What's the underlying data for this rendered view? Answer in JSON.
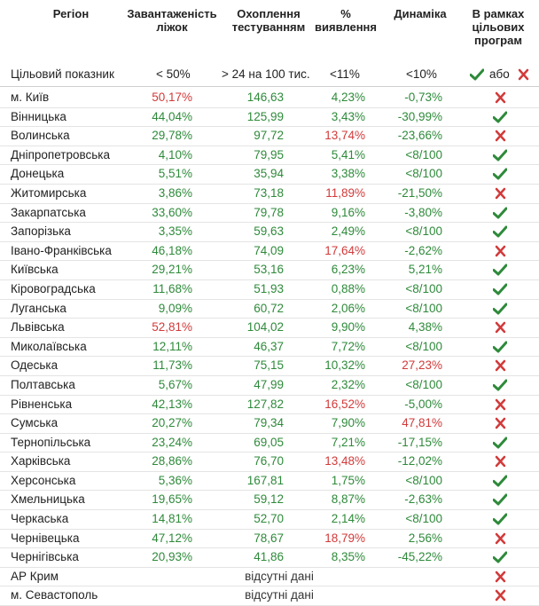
{
  "headers": {
    "region": "Регіон",
    "occupancy": "Завантаженість\nліжок",
    "coverage": "Охоплення\nтестуванням",
    "detection": "%\nвиявлення",
    "dynamics": "Динаміка",
    "programs": "В рамках\nцільових\nпрограм"
  },
  "target": {
    "label": "Цільовий показник",
    "occupancy": "< 50%",
    "coverage": "> 24 на 100 тис.",
    "detection": "<11%",
    "dynamics": "<10%",
    "or_word": "або"
  },
  "missing_text": "відсутні дані",
  "colors": {
    "green": "#2e8a3a",
    "red": "#d23a3a"
  },
  "rows": [
    {
      "name": "м. Київ",
      "occ": "50,17%",
      "occ_c": "red",
      "cov": "146,63",
      "det": "4,23%",
      "det_c": "green",
      "dyn": "-0,73%",
      "dyn_c": "green",
      "ok": false
    },
    {
      "name": "Вінницька",
      "occ": "44,04%",
      "occ_c": "green",
      "cov": "125,99",
      "det": "3,43%",
      "det_c": "green",
      "dyn": "-30,99%",
      "dyn_c": "green",
      "ok": true
    },
    {
      "name": "Волинська",
      "occ": "29,78%",
      "occ_c": "green",
      "cov": "97,72",
      "det": "13,74%",
      "det_c": "red",
      "dyn": "-23,66%",
      "dyn_c": "green",
      "ok": false
    },
    {
      "name": "Дніпропетровська",
      "occ": "4,10%",
      "occ_c": "green",
      "cov": "79,95",
      "det": "5,41%",
      "det_c": "green",
      "dyn": "<8/100",
      "dyn_c": "green",
      "ok": true
    },
    {
      "name": "Донецька",
      "occ": "5,51%",
      "occ_c": "green",
      "cov": "35,94",
      "det": "3,38%",
      "det_c": "green",
      "dyn": "<8/100",
      "dyn_c": "green",
      "ok": true
    },
    {
      "name": "Житомирська",
      "occ": "3,86%",
      "occ_c": "green",
      "cov": "73,18",
      "det": "11,89%",
      "det_c": "red",
      "dyn": "-21,50%",
      "dyn_c": "green",
      "ok": false
    },
    {
      "name": "Закарпатська",
      "occ": "33,60%",
      "occ_c": "green",
      "cov": "79,78",
      "det": "9,16%",
      "det_c": "green",
      "dyn": "-3,80%",
      "dyn_c": "green",
      "ok": true
    },
    {
      "name": "Запорізька",
      "occ": "3,35%",
      "occ_c": "green",
      "cov": "59,63",
      "det": "2,49%",
      "det_c": "green",
      "dyn": "<8/100",
      "dyn_c": "green",
      "ok": true
    },
    {
      "name": "Івано-Франківська",
      "occ": "46,18%",
      "occ_c": "green",
      "cov": "74,09",
      "det": "17,64%",
      "det_c": "red",
      "dyn": "-2,62%",
      "dyn_c": "green",
      "ok": false
    },
    {
      "name": "Київська",
      "occ": "29,21%",
      "occ_c": "green",
      "cov": "53,16",
      "det": "6,23%",
      "det_c": "green",
      "dyn": "5,21%",
      "dyn_c": "green",
      "ok": true
    },
    {
      "name": "Кіровоградська",
      "occ": "11,68%",
      "occ_c": "green",
      "cov": "51,93",
      "det": "0,88%",
      "det_c": "green",
      "dyn": "<8/100",
      "dyn_c": "green",
      "ok": true
    },
    {
      "name": "Луганська",
      "occ": "9,09%",
      "occ_c": "green",
      "cov": "60,72",
      "det": "2,06%",
      "det_c": "green",
      "dyn": "<8/100",
      "dyn_c": "green",
      "ok": true
    },
    {
      "name": "Львівська",
      "occ": "52,81%",
      "occ_c": "red",
      "cov": "104,02",
      "det": "9,90%",
      "det_c": "green",
      "dyn": "4,38%",
      "dyn_c": "green",
      "ok": false
    },
    {
      "name": "Миколаївська",
      "occ": "12,11%",
      "occ_c": "green",
      "cov": "46,37",
      "det": "7,72%",
      "det_c": "green",
      "dyn": "<8/100",
      "dyn_c": "green",
      "ok": true
    },
    {
      "name": "Одеська",
      "occ": "11,73%",
      "occ_c": "green",
      "cov": "75,15",
      "det": "10,32%",
      "det_c": "green",
      "dyn": "27,23%",
      "dyn_c": "red",
      "ok": false
    },
    {
      "name": "Полтавська",
      "occ": "5,67%",
      "occ_c": "green",
      "cov": "47,99",
      "det": "2,32%",
      "det_c": "green",
      "dyn": "<8/100",
      "dyn_c": "green",
      "ok": true
    },
    {
      "name": "Рівненська",
      "occ": "42,13%",
      "occ_c": "green",
      "cov": "127,82",
      "det": "16,52%",
      "det_c": "red",
      "dyn": "-5,00%",
      "dyn_c": "green",
      "ok": false
    },
    {
      "name": "Сумська",
      "occ": "20,27%",
      "occ_c": "green",
      "cov": "79,34",
      "det": "7,90%",
      "det_c": "green",
      "dyn": "47,81%",
      "dyn_c": "red",
      "ok": false
    },
    {
      "name": "Тернопільська",
      "occ": "23,24%",
      "occ_c": "green",
      "cov": "69,05",
      "det": "7,21%",
      "det_c": "green",
      "dyn": "-17,15%",
      "dyn_c": "green",
      "ok": true
    },
    {
      "name": "Харківська",
      "occ": "28,86%",
      "occ_c": "green",
      "cov": "76,70",
      "det": "13,48%",
      "det_c": "red",
      "dyn": "-12,02%",
      "dyn_c": "green",
      "ok": false
    },
    {
      "name": "Херсонська",
      "occ": "5,36%",
      "occ_c": "green",
      "cov": "167,81",
      "det": "1,75%",
      "det_c": "green",
      "dyn": "<8/100",
      "dyn_c": "green",
      "ok": true
    },
    {
      "name": "Хмельницька",
      "occ": "19,65%",
      "occ_c": "green",
      "cov": "59,12",
      "det": "8,87%",
      "det_c": "green",
      "dyn": "-2,63%",
      "dyn_c": "green",
      "ok": true
    },
    {
      "name": "Черкаська",
      "occ": "14,81%",
      "occ_c": "green",
      "cov": "52,70",
      "det": "2,14%",
      "det_c": "green",
      "dyn": "<8/100",
      "dyn_c": "green",
      "ok": true
    },
    {
      "name": "Чернівецька",
      "occ": "47,12%",
      "occ_c": "green",
      "cov": "78,67",
      "det": "18,79%",
      "det_c": "red",
      "dyn": "2,56%",
      "dyn_c": "green",
      "ok": false
    },
    {
      "name": "Чернігівська",
      "occ": "20,93%",
      "occ_c": "green",
      "cov": "41,86",
      "det": "8,35%",
      "det_c": "green",
      "dyn": "-45,22%",
      "dyn_c": "green",
      "ok": true
    },
    {
      "name": "АР Крим",
      "missing": true,
      "ok": false
    },
    {
      "name": "м. Севастополь",
      "missing": true,
      "ok": false
    }
  ]
}
